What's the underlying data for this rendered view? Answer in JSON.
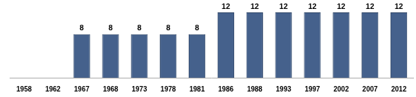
{
  "chart_data": {
    "type": "bar",
    "categories": [
      "1958",
      "1962",
      "1967",
      "1968",
      "1973",
      "1978",
      "1981",
      "1986",
      "1988",
      "1993",
      "1997",
      "2002",
      "2007",
      "2012"
    ],
    "values": [
      null,
      null,
      8,
      8,
      8,
      8,
      8,
      12,
      12,
      12,
      12,
      12,
      12,
      12
    ],
    "color": "#45618c",
    "ylim": [
      0,
      12
    ],
    "grid": false,
    "data_labels": true,
    "tick_labels": "x"
  }
}
